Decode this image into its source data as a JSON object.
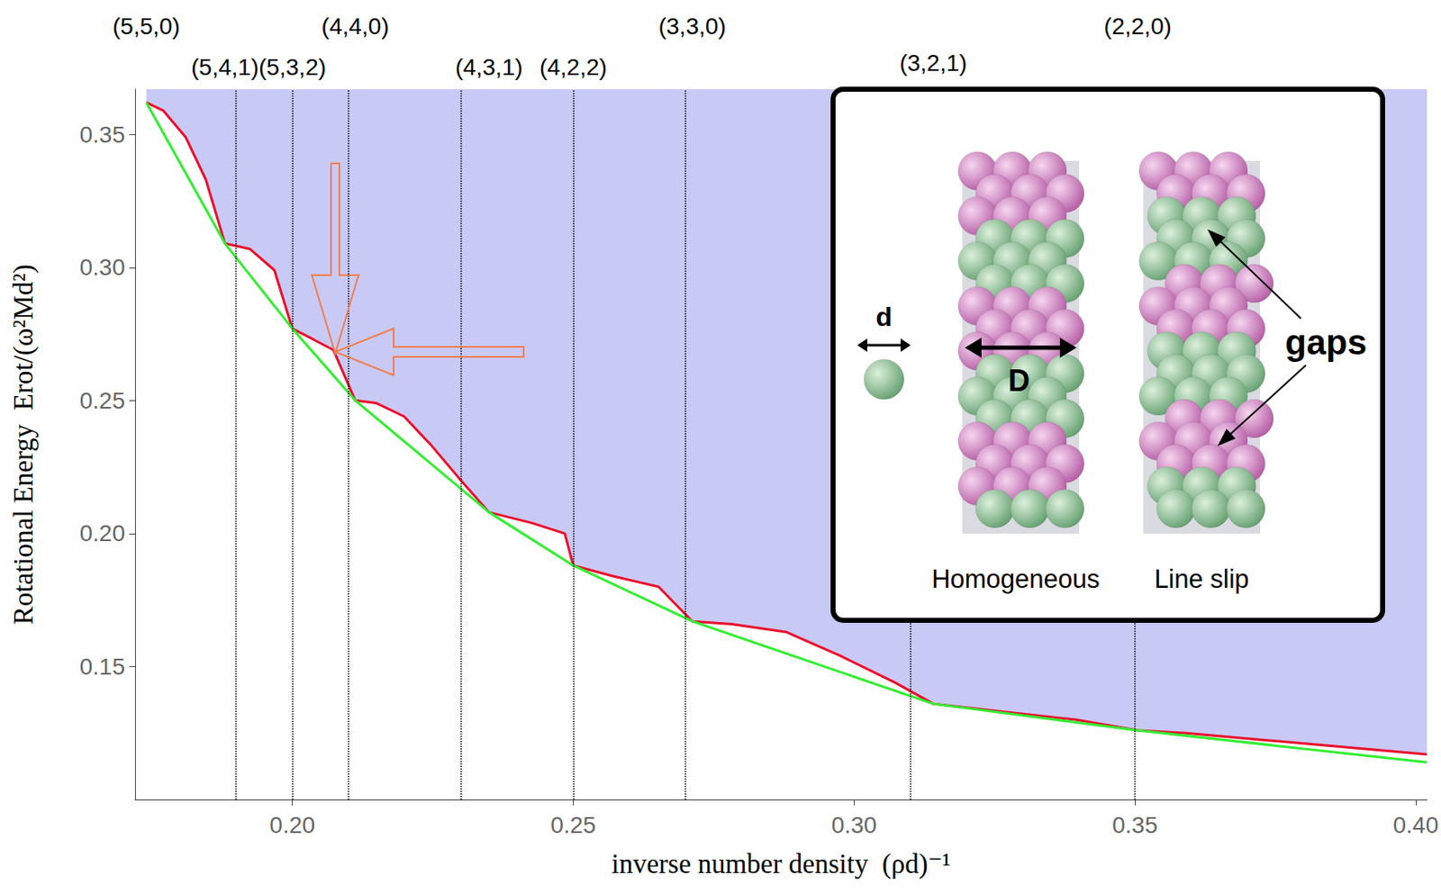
{
  "chart_data": {
    "type": "line",
    "xlabel": "inverse number density  (ρd)⁻¹",
    "ylabel": "Rotational Energy  Erot/(ω²Md²)",
    "xlim": [
      0.172,
      0.402
    ],
    "xticks": [
      {
        "value": 0.2,
        "label": "0.20"
      },
      0.25,
      {
        "value": 0.3,
        "label": "0.30"
      },
      0.35,
      {
        "value": 0.4,
        "label": "0.40"
      }
    ],
    "ylim": [
      0.1,
      0.367
    ],
    "yticks": [
      0.15,
      {
        "value": 0.2,
        "label": "0.20"
      },
      0.25,
      {
        "value": 0.3,
        "label": "0.30"
      },
      0.35
    ],
    "grid": false,
    "series": [
      {
        "color": "#e8112d",
        "x": [
          0.174,
          0.177,
          0.181,
          0.1846,
          0.188,
          0.1924,
          0.1968,
          0.2,
          0.2037,
          0.2073,
          0.2112,
          0.215,
          0.2199,
          0.2248,
          0.2296,
          0.235,
          0.2426,
          0.2485,
          0.25,
          0.2571,
          0.2652,
          0.2712,
          0.2782,
          0.2879,
          0.2976,
          0.3073,
          0.3141,
          0.3267,
          0.3396,
          0.3505,
          0.3591,
          0.3752,
          0.402
        ],
        "values": [
          0.362,
          0.359,
          0.349,
          0.333,
          0.309,
          0.307,
          0.299,
          0.277,
          0.273,
          0.269,
          0.25,
          0.249,
          0.244,
          0.233,
          0.221,
          0.208,
          0.204,
          0.2,
          0.188,
          0.184,
          0.18,
          0.167,
          0.166,
          0.163,
          0.154,
          0.144,
          0.136,
          0.133,
          0.13,
          0.126,
          0.125,
          0.122,
          0.117
        ]
      },
      {
        "color": "#33ee33",
        "x": [
          0.174,
          0.188,
          0.2,
          0.2112,
          0.235,
          0.25,
          0.2712,
          0.3141,
          0.3505,
          0.402
        ],
        "values": [
          0.362,
          0.309,
          0.277,
          0.25,
          0.208,
          0.188,
          0.167,
          0.136,
          0.126,
          0.114
        ]
      }
    ],
    "vertical_lines": [
      {
        "x": 0.174,
        "label": "(5,5,0)"
      },
      {
        "x": 0.188,
        "label": "(5,4,1)"
      },
      {
        "x": 0.2,
        "label": "(5,3,2)"
      },
      {
        "x": 0.2112,
        "label": "(4,4,0)"
      },
      {
        "x": 0.235,
        "label": "(4,3,1)"
      },
      {
        "x": 0.25,
        "label": "(4,2,2)"
      },
      {
        "x": 0.2712,
        "label": "(3,3,0)"
      },
      {
        "x": 0.3141,
        "label": "(3,2,1)"
      },
      {
        "x": 0.3505,
        "label": "(2,2,0)"
      }
    ],
    "inset": {
      "sphere_label": "d",
      "tube_label": "D",
      "structures": [
        "Homogeneous",
        "Line slip"
      ],
      "gaps_label": "gaps"
    }
  }
}
